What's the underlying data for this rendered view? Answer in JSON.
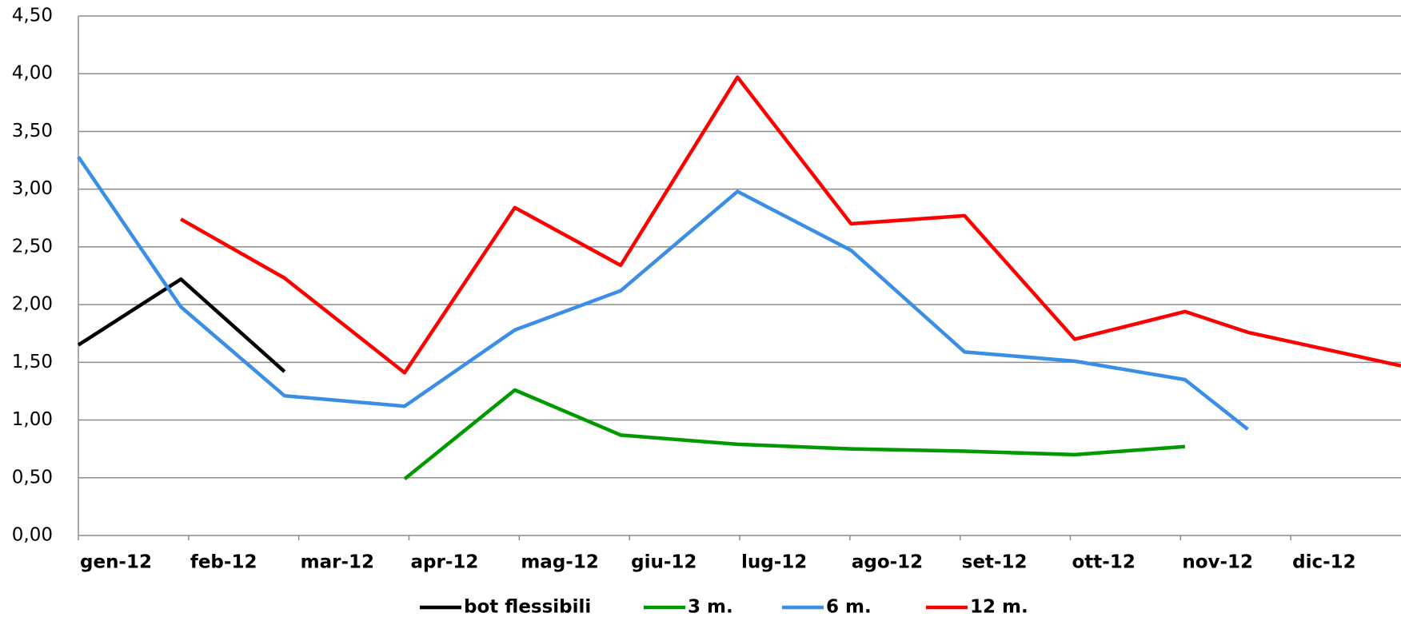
{
  "chart_data": {
    "type": "line",
    "x": [
      0,
      0.93,
      1.87,
      2.96,
      3.96,
      4.92,
      5.98,
      7.01,
      8.04,
      9.04,
      10.04,
      10.61,
      12
    ],
    "xlim": [
      0,
      12
    ],
    "xticks": [
      {
        "value": 0,
        "label": "gen-12"
      },
      {
        "value": 1,
        "label": "feb-12"
      },
      {
        "value": 2,
        "label": "mar-12"
      },
      {
        "value": 3,
        "label": "apr-12"
      },
      {
        "value": 4,
        "label": "mag-12"
      },
      {
        "value": 5,
        "label": "giu-12"
      },
      {
        "value": 6,
        "label": "lug-12"
      },
      {
        "value": 7,
        "label": "ago-12"
      },
      {
        "value": 8,
        "label": "set-12"
      },
      {
        "value": 9,
        "label": "ott-12"
      },
      {
        "value": 10,
        "label": "nov-12"
      },
      {
        "value": 11,
        "label": "dic-12"
      }
    ],
    "ylim": [
      0,
      4.5
    ],
    "yticks": [
      {
        "value": 0,
        "label": "0,00"
      },
      {
        "value": 0.5,
        "label": "0,50"
      },
      {
        "value": 1,
        "label": "1,00"
      },
      {
        "value": 1.5,
        "label": "1,50"
      },
      {
        "value": 2,
        "label": "2,00"
      },
      {
        "value": 2.5,
        "label": "2,50"
      },
      {
        "value": 3,
        "label": "3,00"
      },
      {
        "value": 3.5,
        "label": "3,50"
      },
      {
        "value": 4,
        "label": "4,00"
      },
      {
        "value": 4.5,
        "label": "4,50"
      }
    ],
    "grid": true,
    "legend": "bottom",
    "series": [
      {
        "name": "bot flessibili",
        "color": "#000000",
        "values": [
          1.65,
          2.22,
          1.42,
          null,
          null,
          null,
          null,
          null,
          null,
          null,
          null,
          null,
          null
        ]
      },
      {
        "name": "3 m.",
        "color": "#009900",
        "values": [
          null,
          null,
          null,
          0.49,
          1.26,
          0.87,
          0.79,
          0.75,
          0.73,
          0.7,
          0.77,
          null,
          null
        ]
      },
      {
        "name": "6 m.",
        "color": "#3a8ee6",
        "values": [
          3.28,
          1.98,
          1.21,
          1.12,
          1.78,
          2.12,
          2.98,
          2.47,
          1.59,
          1.51,
          1.35,
          0.92,
          null
        ]
      },
      {
        "name": "12 m.",
        "color": "#ff0000",
        "values": [
          null,
          2.74,
          2.23,
          1.41,
          2.84,
          2.34,
          3.97,
          2.7,
          2.77,
          1.7,
          1.94,
          1.76,
          1.47
        ]
      }
    ]
  }
}
